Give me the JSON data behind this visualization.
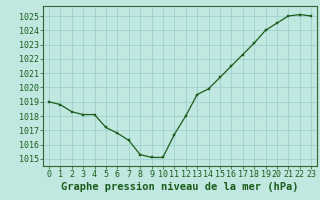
{
  "x": [
    0,
    1,
    2,
    3,
    4,
    5,
    6,
    7,
    8,
    9,
    10,
    11,
    12,
    13,
    14,
    15,
    16,
    17,
    18,
    19,
    20,
    21,
    22,
    23
  ],
  "y": [
    1019.0,
    1018.8,
    1018.3,
    1018.1,
    1018.1,
    1017.2,
    1016.8,
    1016.3,
    1015.3,
    1015.1,
    1015.1,
    1016.7,
    1018.0,
    1019.5,
    1019.9,
    1020.7,
    1021.5,
    1022.3,
    1023.1,
    1024.0,
    1024.5,
    1025.0,
    1025.1,
    1025.0
  ],
  "xlabel": "Graphe pression niveau de la mer (hPa)",
  "ylim": [
    1014.5,
    1025.7
  ],
  "yticks": [
    1015,
    1016,
    1017,
    1018,
    1019,
    1020,
    1021,
    1022,
    1023,
    1024,
    1025
  ],
  "xticks": [
    0,
    1,
    2,
    3,
    4,
    5,
    6,
    7,
    8,
    9,
    10,
    11,
    12,
    13,
    14,
    15,
    16,
    17,
    18,
    19,
    20,
    21,
    22,
    23
  ],
  "line_color": "#1a5c1a",
  "marker_color": "#1a5c1a",
  "bg_color": "#c0e8e0",
  "grid_color": "#99cccc",
  "axis_color": "#336633",
  "label_color": "#1a5c1a",
  "tick_label_color": "#1a5c1a",
  "xlabel_fontsize": 7.5,
  "tick_fontsize": 6.0
}
